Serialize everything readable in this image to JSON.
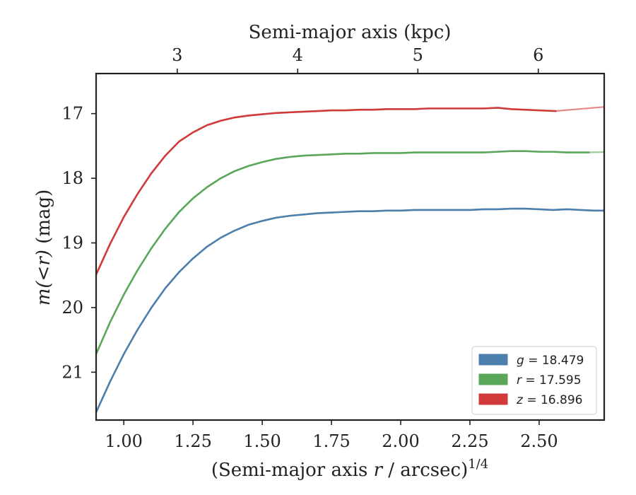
{
  "chart_data": {
    "type": "line",
    "xlabel_pre": "(Semi-major axis ",
    "xlabel_var": "r",
    "xlabel_post": " / arcsec)",
    "xlabel_sup": "1/4",
    "ylabel_pre": "m",
    "ylabel_var": "(<r)",
    "ylabel_post": " (mag)",
    "top_xlabel": "Semi-major axis (kpc)",
    "xlim": [
      0.9,
      2.735
    ],
    "ylim": [
      21.74,
      16.38
    ],
    "x_ticks": [
      1.0,
      1.25,
      1.5,
      1.75,
      2.0,
      2.25,
      2.5
    ],
    "x_tick_labels": [
      "1.00",
      "1.25",
      "1.50",
      "1.75",
      "2.00",
      "2.25",
      "2.50"
    ],
    "y_ticks": [
      17,
      18,
      19,
      20,
      21
    ],
    "y_tick_labels": [
      "17",
      "18",
      "19",
      "20",
      "21"
    ],
    "top_ticks": [
      3,
      4,
      5,
      6
    ],
    "top_tick_labels": [
      "3",
      "4",
      "5",
      "6"
    ],
    "top_tick_positions_x": [
      1.193,
      1.628,
      2.062,
      2.497
    ],
    "series": [
      {
        "name": "g = 18.479",
        "legend_var": "g",
        "legend_value": "= 18.479",
        "color": "#4c7fac",
        "x": [
          0.9,
          0.95,
          1.0,
          1.05,
          1.1,
          1.15,
          1.2,
          1.25,
          1.3,
          1.35,
          1.4,
          1.45,
          1.5,
          1.55,
          1.6,
          1.65,
          1.7,
          1.75,
          1.8,
          1.85,
          1.9,
          1.95,
          2.0,
          2.05,
          2.1,
          2.15,
          2.2,
          2.25,
          2.3,
          2.35,
          2.4,
          2.45,
          2.5,
          2.55,
          2.6,
          2.65,
          2.7,
          2.735
        ],
        "y": [
          21.62,
          21.15,
          20.72,
          20.34,
          20.0,
          19.7,
          19.45,
          19.24,
          19.06,
          18.92,
          18.81,
          18.72,
          18.66,
          18.61,
          18.58,
          18.56,
          18.54,
          18.53,
          18.52,
          18.51,
          18.51,
          18.5,
          18.5,
          18.49,
          18.49,
          18.49,
          18.49,
          18.49,
          18.48,
          18.48,
          18.47,
          18.47,
          18.48,
          18.49,
          18.48,
          18.49,
          18.5,
          18.5
        ]
      },
      {
        "name": "r = 17.595",
        "legend_var": "r",
        "legend_value": "= 17.595",
        "color": "#5aa65a",
        "x": [
          0.9,
          0.95,
          1.0,
          1.05,
          1.1,
          1.15,
          1.2,
          1.25,
          1.3,
          1.35,
          1.4,
          1.45,
          1.5,
          1.55,
          1.6,
          1.65,
          1.7,
          1.75,
          1.8,
          1.85,
          1.9,
          1.95,
          2.0,
          2.05,
          2.1,
          2.15,
          2.2,
          2.25,
          2.3,
          2.35,
          2.4,
          2.45,
          2.5,
          2.55,
          2.6,
          2.68
        ],
        "y": [
          20.72,
          20.23,
          19.8,
          19.42,
          19.08,
          18.78,
          18.52,
          18.31,
          18.14,
          18.0,
          17.89,
          17.81,
          17.75,
          17.7,
          17.67,
          17.65,
          17.64,
          17.63,
          17.62,
          17.62,
          17.61,
          17.61,
          17.61,
          17.6,
          17.6,
          17.6,
          17.6,
          17.6,
          17.6,
          17.59,
          17.58,
          17.58,
          17.59,
          17.59,
          17.6,
          17.6
        ]
      },
      {
        "name": "z = 16.896",
        "legend_var": "z",
        "legend_value": "= 16.896",
        "color": "#d03a3a",
        "x": [
          0.9,
          0.95,
          1.0,
          1.05,
          1.1,
          1.15,
          1.2,
          1.25,
          1.3,
          1.35,
          1.4,
          1.45,
          1.5,
          1.55,
          1.6,
          1.65,
          1.7,
          1.75,
          1.8,
          1.85,
          1.9,
          1.95,
          2.0,
          2.05,
          2.1,
          2.15,
          2.2,
          2.25,
          2.3,
          2.35,
          2.4,
          2.45,
          2.5,
          2.56
        ],
        "y": [
          19.49,
          19.02,
          18.6,
          18.24,
          17.92,
          17.65,
          17.43,
          17.29,
          17.18,
          17.11,
          17.06,
          17.03,
          17.01,
          16.99,
          16.98,
          16.97,
          16.96,
          16.95,
          16.95,
          16.94,
          16.94,
          16.93,
          16.93,
          16.93,
          16.92,
          16.92,
          16.92,
          16.92,
          16.92,
          16.91,
          16.93,
          16.94,
          16.95,
          16.96
        ]
      }
    ],
    "fits": [
      {
        "color": "#4c7fac",
        "asymptote": 18.479,
        "x_end": 2.735
      },
      {
        "color": "#5aa65a",
        "asymptote": 17.595,
        "x_end": 2.735
      },
      {
        "color": "#d03a3a",
        "asymptote": 16.896,
        "x_end": 2.735
      }
    ],
    "legend_position": "lower-right",
    "grid": false
  }
}
